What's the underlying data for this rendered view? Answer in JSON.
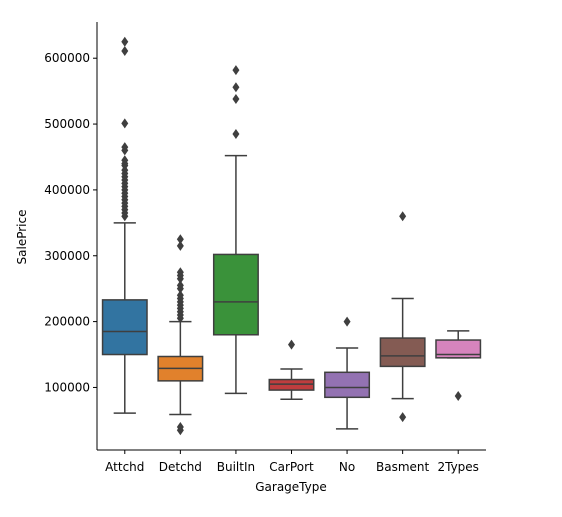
{
  "chart_data": {
    "type": "box",
    "xlabel": "GarageType",
    "ylabel": "SalePrice",
    "ylim": [
      5000,
      655000
    ],
    "yticks": [
      100000,
      200000,
      300000,
      400000,
      500000,
      600000
    ],
    "ytick_labels": [
      "100000",
      "200000",
      "300000",
      "400000",
      "500000",
      "600000"
    ],
    "grid": false,
    "categories": [
      "Attchd",
      "Detchd",
      "BuiltIn",
      "CarPort",
      "No",
      "Basment",
      "2Types"
    ],
    "boxes": [
      {
        "category": "Attchd",
        "color": "#3274a1",
        "whisker_low": 61000,
        "q1": 150000,
        "median": 185000,
        "q3": 233000,
        "whisker_high": 350000,
        "outliers": [
          360000,
          365000,
          370000,
          375000,
          380000,
          385000,
          390000,
          395000,
          400000,
          405000,
          410000,
          415000,
          420000,
          425000,
          430000,
          437000,
          440000,
          445000,
          460000,
          465000,
          501000,
          611000,
          625000
        ]
      },
      {
        "category": "Detchd",
        "color": "#e1812c",
        "whisker_low": 59000,
        "q1": 110000,
        "median": 129000,
        "q3": 147000,
        "whisker_high": 200000,
        "outliers": [
          35000,
          40000,
          205000,
          210000,
          215000,
          220000,
          225000,
          230000,
          235000,
          240000,
          250000,
          255000,
          265000,
          270000,
          275000,
          315000,
          325000
        ]
      },
      {
        "category": "BuiltIn",
        "color": "#3a923a",
        "whisker_low": 91000,
        "q1": 180000,
        "median": 230000,
        "q3": 302000,
        "whisker_high": 452000,
        "outliers": [
          485000,
          538000,
          556000,
          582000
        ]
      },
      {
        "category": "CarPort",
        "color": "#c03d3e",
        "whisker_low": 82000,
        "q1": 96000,
        "median": 105000,
        "q3": 112000,
        "whisker_high": 128000,
        "outliers": [
          165000
        ]
      },
      {
        "category": "No",
        "color": "#9372b2",
        "whisker_low": 37000,
        "q1": 85000,
        "median": 100000,
        "q3": 123000,
        "whisker_high": 160000,
        "outliers": [
          200000
        ]
      },
      {
        "category": "Basment",
        "color": "#845b53",
        "whisker_low": 83000,
        "q1": 132000,
        "median": 148000,
        "q3": 175000,
        "whisker_high": 235000,
        "outliers": [
          55000,
          360000
        ]
      },
      {
        "category": "2Types",
        "color": "#d684bd",
        "whisker_low": 145000,
        "q1": 145000,
        "median": 150000,
        "q3": 172000,
        "whisker_high": 186000,
        "outliers": [
          87000
        ]
      }
    ]
  }
}
